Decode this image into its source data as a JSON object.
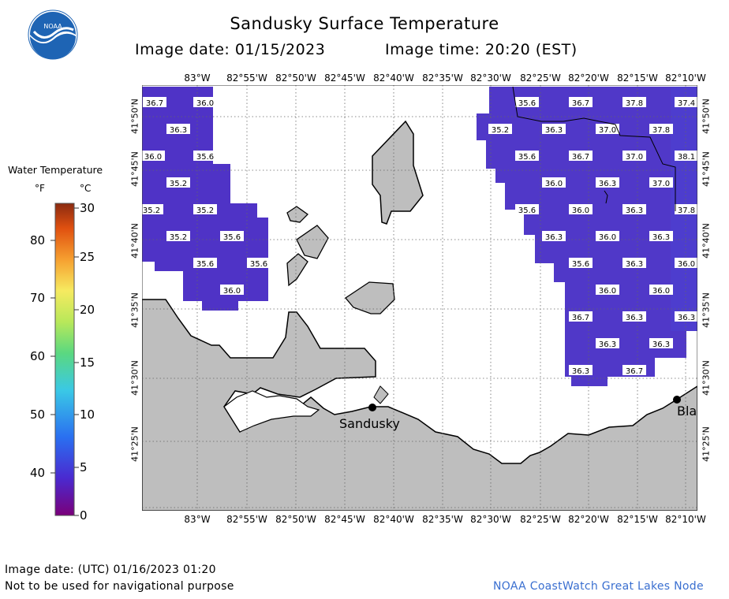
{
  "header": {
    "title": "Sandusky Surface Temperature",
    "image_date_label": "Image date: 01/15/2023",
    "image_time_label": "Image time: 20:20 (EST)"
  },
  "logo": {
    "text": "NOAA"
  },
  "legend": {
    "title": "Water Temperature",
    "unit_f": "°F",
    "unit_c": "°C",
    "f_ticks": [
      "80",
      "70",
      "60",
      "50",
      "40"
    ],
    "c_ticks": [
      "30",
      "25",
      "20",
      "15",
      "10",
      "5",
      "0"
    ]
  },
  "axes": {
    "lon_labels": [
      "83°W",
      "82°55'W",
      "82°50'W",
      "82°45'W",
      "82°40'W",
      "82°35'W",
      "82°30'W",
      "82°25'W",
      "82°20'W",
      "82°15'W",
      "82°10'W"
    ],
    "lat_labels": [
      "41°50'N",
      "41°45'N",
      "41°40'N",
      "41°35'N",
      "41°30'N",
      "41°25'N"
    ]
  },
  "places": {
    "sandusky": "Sandusky",
    "bla": "Bla"
  },
  "temperatures": [
    {
      "v": "36.7"
    },
    {
      "v": "36.0"
    },
    {
      "v": "36.3"
    },
    {
      "v": "36.0"
    },
    {
      "v": "35.6"
    },
    {
      "v": "35.2"
    },
    {
      "v": "35.2"
    },
    {
      "v": "35.2"
    },
    {
      "v": "35.2"
    },
    {
      "v": "35.6"
    },
    {
      "v": "35.6"
    },
    {
      "v": "35.6"
    },
    {
      "v": "36.0"
    },
    {
      "v": "35.6"
    },
    {
      "v": "36.7"
    },
    {
      "v": "37.8"
    },
    {
      "v": "37.4"
    },
    {
      "v": "35.2"
    },
    {
      "v": "36.3"
    },
    {
      "v": "37.0"
    },
    {
      "v": "37.8"
    },
    {
      "v": "35.6"
    },
    {
      "v": "36.7"
    },
    {
      "v": "37.0"
    },
    {
      "v": "38.1"
    },
    {
      "v": "36.0"
    },
    {
      "v": "36.3"
    },
    {
      "v": "37.0"
    },
    {
      "v": "35.6"
    },
    {
      "v": "36.0"
    },
    {
      "v": "36.3"
    },
    {
      "v": "37.8"
    },
    {
      "v": "36.3"
    },
    {
      "v": "36.0"
    },
    {
      "v": "36.3"
    },
    {
      "v": "35.6"
    },
    {
      "v": "36.3"
    },
    {
      "v": "36.0"
    },
    {
      "v": "36.0"
    },
    {
      "v": "36.0"
    },
    {
      "v": "36.7"
    },
    {
      "v": "36.3"
    },
    {
      "v": "36.3"
    },
    {
      "v": "36.3"
    },
    {
      "v": "36.3"
    },
    {
      "v": "36.3"
    },
    {
      "v": "36.7"
    }
  ],
  "footer": {
    "utc_date": "Image date: (UTC) 01/16/2023  01:20",
    "disclaimer": "Not to be used for navigational purpose",
    "credit": "NOAA CoastWatch Great Lakes Node"
  },
  "colors": {
    "water_warm": "#5a3ccd",
    "water_deep": "#4b2dbf",
    "land": "#bebebe",
    "noaa_blue": "#1e64b4"
  }
}
